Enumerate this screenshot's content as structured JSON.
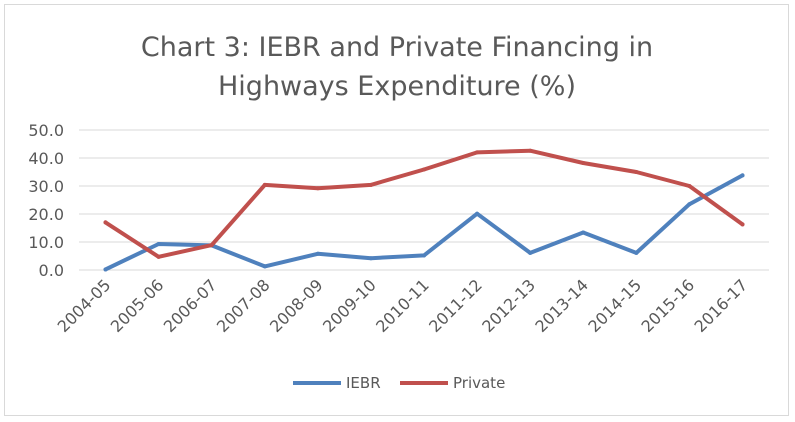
{
  "chart_data": {
    "type": "line",
    "title_lines": [
      "Chart 3: IEBR and Private Financing in",
      "Highways Expenditure (%)"
    ],
    "xlabel": "",
    "ylabel": "",
    "categories": [
      "2004-05",
      "2005-06",
      "2006-07",
      "2007-08",
      "2008-09",
      "2009-10",
      "2010-11",
      "2011-12",
      "2012-13",
      "2013-14",
      "2014-15",
      "2015-16",
      "2016-17"
    ],
    "ylim": [
      0,
      50
    ],
    "yticks": [
      "0.0",
      "10.0",
      "20.0",
      "30.0",
      "40.0",
      "50.0"
    ],
    "grid": true,
    "legend_position": "bottom",
    "series": [
      {
        "name": "IEBR",
        "color": "#4f81bd",
        "values": [
          0.2,
          9.3,
          8.8,
          1.3,
          5.8,
          4.2,
          5.2,
          20.1,
          6.1,
          13.4,
          6.1,
          23.5,
          33.8
        ]
      },
      {
        "name": "Private",
        "color": "#c0504d",
        "values": [
          17.0,
          4.7,
          8.9,
          30.4,
          29.2,
          30.4,
          35.9,
          42.0,
          42.6,
          38.2,
          35.0,
          30.0,
          16.3
        ]
      }
    ]
  }
}
